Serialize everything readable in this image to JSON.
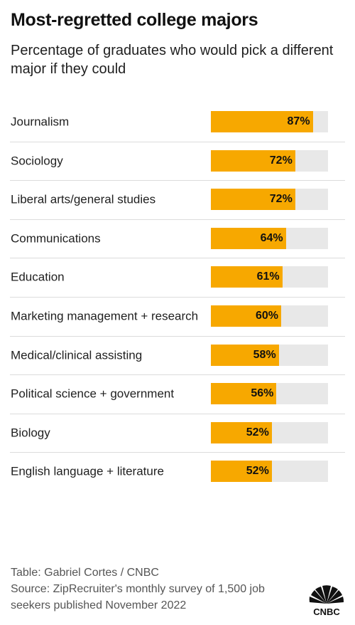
{
  "header": {
    "title": "Most-regretted college majors",
    "subtitle": "Percentage of graduates who would pick a different major if they could"
  },
  "colors": {
    "bar_fill": "#f7a800",
    "bar_track": "#e8e8e8",
    "divider": "#dcdcdc"
  },
  "chart_data": {
    "type": "bar",
    "orientation": "horizontal",
    "categories": [
      "Journalism",
      "Sociology",
      "Liberal arts/general studies",
      "Communications",
      "Education",
      "Marketing management + research",
      "Medical/clinical assisting",
      "Political science + government",
      "Biology",
      "English language + literature"
    ],
    "values": [
      87,
      72,
      72,
      64,
      61,
      60,
      58,
      56,
      52,
      52
    ],
    "value_labels": [
      "87%",
      "72%",
      "72%",
      "64%",
      "61%",
      "60%",
      "58%",
      "56%",
      "52%",
      "52%"
    ],
    "unit": "%",
    "xlim": [
      0,
      100
    ],
    "title": "Most-regretted college majors",
    "subtitle": "Percentage of graduates who would pick a different major if they could",
    "grid": false,
    "legend": false
  },
  "footer": {
    "credit": "Table: Gabriel Cortes / CNBC",
    "source_line1": "Source: ZipRecruiter's monthly survey of 1,500 job",
    "source_line2": "seekers published November 2022"
  },
  "logo": {
    "text": "CNBC",
    "icon": "peacock-logo-icon"
  }
}
